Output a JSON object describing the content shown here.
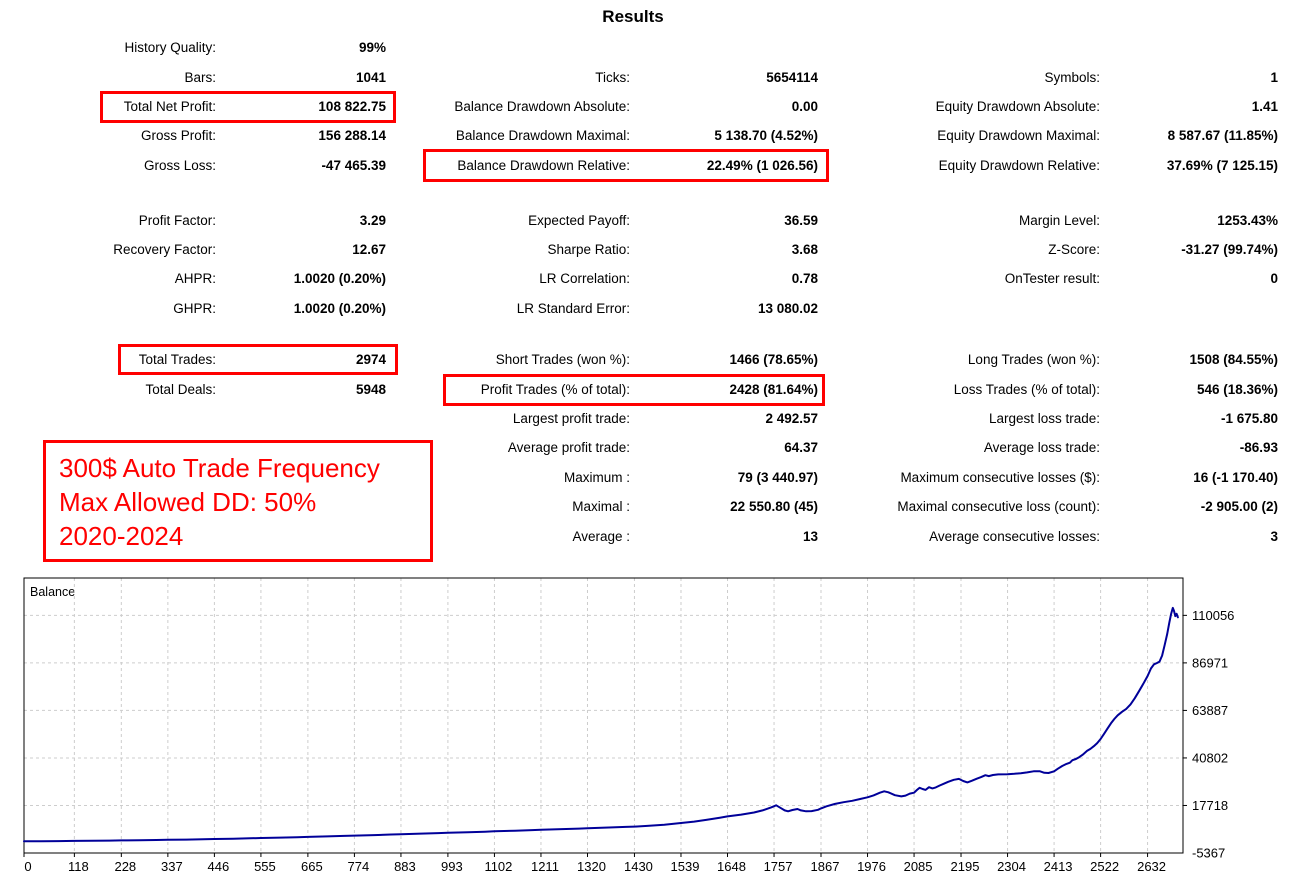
{
  "title": "Results",
  "accent_color": "#ff0000",
  "text_color": "#000000",
  "stats": {
    "columns": [
      {
        "name": "left",
        "groups": [
          {
            "rows": [
              {
                "label": "History Quality:",
                "value": "99%"
              },
              {
                "label": "Bars:",
                "value": "1041"
              },
              {
                "label": "Total Net Profit:",
                "value": "108 822.75",
                "boxed": true
              },
              {
                "label": "Gross Profit:",
                "value": "156 288.14"
              },
              {
                "label": "Gross Loss:",
                "value": "-47 465.39"
              }
            ]
          },
          {
            "rows": [
              {
                "label": "Profit Factor:",
                "value": "3.29"
              },
              {
                "label": "Recovery Factor:",
                "value": "12.67"
              },
              {
                "label": "AHPR:",
                "value": "1.0020 (0.20%)"
              },
              {
                "label": "GHPR:",
                "value": "1.0020 (0.20%)"
              }
            ]
          },
          {
            "rows": [
              {
                "label": "Total Trades:",
                "value": "2974",
                "boxed": true
              },
              {
                "label": "Total Deals:",
                "value": "5948"
              }
            ]
          }
        ]
      },
      {
        "name": "middle",
        "groups": [
          {
            "rows": [
              {
                "label": "Ticks:",
                "value": "5654114"
              },
              {
                "label": "Balance Drawdown Absolute:",
                "value": "0.00"
              },
              {
                "label": "Balance Drawdown Maximal:",
                "value": "5 138.70 (4.52%)"
              },
              {
                "label": "Balance Drawdown Relative:",
                "value": "22.49% (1 026.56)",
                "boxed": true
              }
            ]
          },
          {
            "rows": [
              {
                "label": "Expected Payoff:",
                "value": "36.59"
              },
              {
                "label": "Sharpe Ratio:",
                "value": "3.68"
              },
              {
                "label": "LR Correlation:",
                "value": "0.78"
              },
              {
                "label": "LR Standard Error:",
                "value": "13 080.02"
              }
            ]
          },
          {
            "rows": [
              {
                "label": "Short Trades (won %):",
                "value": "1466 (78.65%)"
              },
              {
                "label": "Profit Trades (% of total):",
                "value": "2428 (81.64%)",
                "boxed": true
              },
              {
                "label": "Largest profit trade:",
                "value": "2 492.57"
              },
              {
                "label": "Average profit trade:",
                "value": "64.37"
              },
              {
                "label": "Maximum :",
                "value": "79 (3 440.97)"
              },
              {
                "label": "Maximal :",
                "value": "22 550.80 (45)"
              },
              {
                "label": "Average :",
                "value": "13"
              }
            ]
          }
        ]
      },
      {
        "name": "right",
        "groups": [
          {
            "rows": [
              {
                "label": "Symbols:",
                "value": "1"
              },
              {
                "label": "Equity Drawdown Absolute:",
                "value": "1.41"
              },
              {
                "label": "Equity Drawdown Maximal:",
                "value": "8 587.67 (11.85%)"
              },
              {
                "label": "Equity Drawdown Relative:",
                "value": "37.69% (7 125.15)"
              }
            ]
          },
          {
            "rows": [
              {
                "label": "Margin Level:",
                "value": "1253.43%"
              },
              {
                "label": "Z-Score:",
                "value": "-31.27 (99.74%)"
              },
              {
                "label": "OnTester result:",
                "value": "0"
              }
            ]
          },
          {
            "rows": [
              {
                "label": "Long Trades (won %):",
                "value": "1508 (84.55%)"
              },
              {
                "label": "Loss Trades (% of total):",
                "value": "546 (18.36%)"
              },
              {
                "label": "Largest loss trade:",
                "value": "-1 675.80"
              },
              {
                "label": "Average loss trade:",
                "value": "-86.93"
              },
              {
                "label": "Maximum consecutive losses ($):",
                "value": "16 (-1 170.40)"
              },
              {
                "label": "Maximal consecutive loss (count):",
                "value": "-2 905.00 (2)"
              },
              {
                "label": "Average consecutive losses:",
                "value": "3"
              }
            ]
          }
        ]
      }
    ]
  },
  "annotation": {
    "color": "#ff0000",
    "lines": [
      "300$ Auto Trade Frequency",
      "Max Allowed DD: 50%",
      "2020-2024"
    ]
  },
  "chart_data": {
    "type": "line",
    "title": "Balance",
    "xlabel": "",
    "ylabel": "",
    "grid": "dashed",
    "grid_color": "#cdcdcd",
    "axis_color": "#000000",
    "xlim": [
      0,
      2715
    ],
    "ylim": [
      -5367,
      128200
    ],
    "x_ticks": [
      0,
      118,
      228,
      337,
      446,
      555,
      665,
      774,
      883,
      993,
      1102,
      1211,
      1320,
      1430,
      1539,
      1648,
      1757,
      1867,
      1976,
      2085,
      2195,
      2304,
      2413,
      2522,
      2632
    ],
    "y_ticks": [
      110056,
      86971,
      63887,
      40802,
      17718,
      -5367
    ],
    "series": [
      {
        "name": "Balance",
        "color": "#000099",
        "points": [
          [
            0,
            300
          ],
          [
            40,
            360
          ],
          [
            80,
            420
          ],
          [
            118,
            500
          ],
          [
            160,
            580
          ],
          [
            200,
            660
          ],
          [
            228,
            730
          ],
          [
            270,
            820
          ],
          [
            310,
            930
          ],
          [
            337,
            1020
          ],
          [
            380,
            1160
          ],
          [
            420,
            1300
          ],
          [
            446,
            1420
          ],
          [
            490,
            1600
          ],
          [
            530,
            1780
          ],
          [
            555,
            1900
          ],
          [
            600,
            2120
          ],
          [
            640,
            2330
          ],
          [
            665,
            2450
          ],
          [
            710,
            2700
          ],
          [
            750,
            2930
          ],
          [
            774,
            3080
          ],
          [
            820,
            3350
          ],
          [
            860,
            3600
          ],
          [
            883,
            3750
          ],
          [
            930,
            4050
          ],
          [
            970,
            4300
          ],
          [
            993,
            4450
          ],
          [
            1040,
            4750
          ],
          [
            1080,
            5000
          ],
          [
            1102,
            5150
          ],
          [
            1150,
            5470
          ],
          [
            1190,
            5740
          ],
          [
            1211,
            5880
          ],
          [
            1260,
            6220
          ],
          [
            1300,
            6500
          ],
          [
            1320,
            6640
          ],
          [
            1370,
            7000
          ],
          [
            1410,
            7300
          ],
          [
            1430,
            7450
          ],
          [
            1460,
            7800
          ],
          [
            1500,
            8400
          ],
          [
            1539,
            9200
          ],
          [
            1570,
            9900
          ],
          [
            1600,
            10800
          ],
          [
            1630,
            11800
          ],
          [
            1648,
            12400
          ],
          [
            1680,
            13300
          ],
          [
            1710,
            14300
          ],
          [
            1730,
            15300
          ],
          [
            1750,
            16800
          ],
          [
            1762,
            17800
          ],
          [
            1772,
            16600
          ],
          [
            1782,
            15300
          ],
          [
            1790,
            14900
          ],
          [
            1800,
            15500
          ],
          [
            1812,
            16000
          ],
          [
            1820,
            15300
          ],
          [
            1832,
            14900
          ],
          [
            1845,
            15000
          ],
          [
            1860,
            15600
          ],
          [
            1867,
            16300
          ],
          [
            1880,
            17300
          ],
          [
            1900,
            18500
          ],
          [
            1920,
            19300
          ],
          [
            1940,
            20000
          ],
          [
            1960,
            20900
          ],
          [
            1976,
            21700
          ],
          [
            1990,
            22600
          ],
          [
            2005,
            23900
          ],
          [
            2015,
            24600
          ],
          [
            2025,
            24100
          ],
          [
            2040,
            22700
          ],
          [
            2055,
            22100
          ],
          [
            2065,
            22500
          ],
          [
            2075,
            23500
          ],
          [
            2085,
            23900
          ],
          [
            2092,
            25300
          ],
          [
            2098,
            26300
          ],
          [
            2105,
            25700
          ],
          [
            2112,
            25300
          ],
          [
            2120,
            26600
          ],
          [
            2128,
            26000
          ],
          [
            2136,
            26500
          ],
          [
            2145,
            27400
          ],
          [
            2155,
            28300
          ],
          [
            2165,
            29200
          ],
          [
            2178,
            30200
          ],
          [
            2190,
            30600
          ],
          [
            2200,
            29600
          ],
          [
            2210,
            28900
          ],
          [
            2220,
            29700
          ],
          [
            2232,
            30700
          ],
          [
            2242,
            31500
          ],
          [
            2252,
            32400
          ],
          [
            2260,
            32000
          ],
          [
            2270,
            32500
          ],
          [
            2282,
            32800
          ],
          [
            2304,
            32900
          ],
          [
            2320,
            33100
          ],
          [
            2335,
            33400
          ],
          [
            2350,
            33800
          ],
          [
            2365,
            34300
          ],
          [
            2380,
            34300
          ],
          [
            2390,
            33600
          ],
          [
            2400,
            33500
          ],
          [
            2413,
            34300
          ],
          [
            2422,
            35600
          ],
          [
            2432,
            36900
          ],
          [
            2442,
            37900
          ],
          [
            2450,
            38500
          ],
          [
            2456,
            39700
          ],
          [
            2464,
            40300
          ],
          [
            2472,
            41200
          ],
          [
            2480,
            42400
          ],
          [
            2490,
            44200
          ],
          [
            2498,
            45200
          ],
          [
            2506,
            46500
          ],
          [
            2514,
            48000
          ],
          [
            2522,
            50000
          ],
          [
            2530,
            52500
          ],
          [
            2538,
            55000
          ],
          [
            2546,
            57600
          ],
          [
            2554,
            59700
          ],
          [
            2562,
            61500
          ],
          [
            2572,
            63200
          ],
          [
            2582,
            64600
          ],
          [
            2592,
            66800
          ],
          [
            2602,
            69800
          ],
          [
            2612,
            73200
          ],
          [
            2622,
            76800
          ],
          [
            2632,
            80600
          ],
          [
            2640,
            84300
          ],
          [
            2647,
            86300
          ],
          [
            2654,
            86900
          ],
          [
            2660,
            87600
          ],
          [
            2666,
            90500
          ],
          [
            2672,
            95500
          ],
          [
            2678,
            101000
          ],
          [
            2683,
            106500
          ],
          [
            2687,
            110500
          ],
          [
            2691,
            113700
          ],
          [
            2694,
            112200
          ],
          [
            2697,
            109700
          ],
          [
            2700,
            110800
          ],
          [
            2703,
            109100
          ]
        ]
      }
    ]
  }
}
